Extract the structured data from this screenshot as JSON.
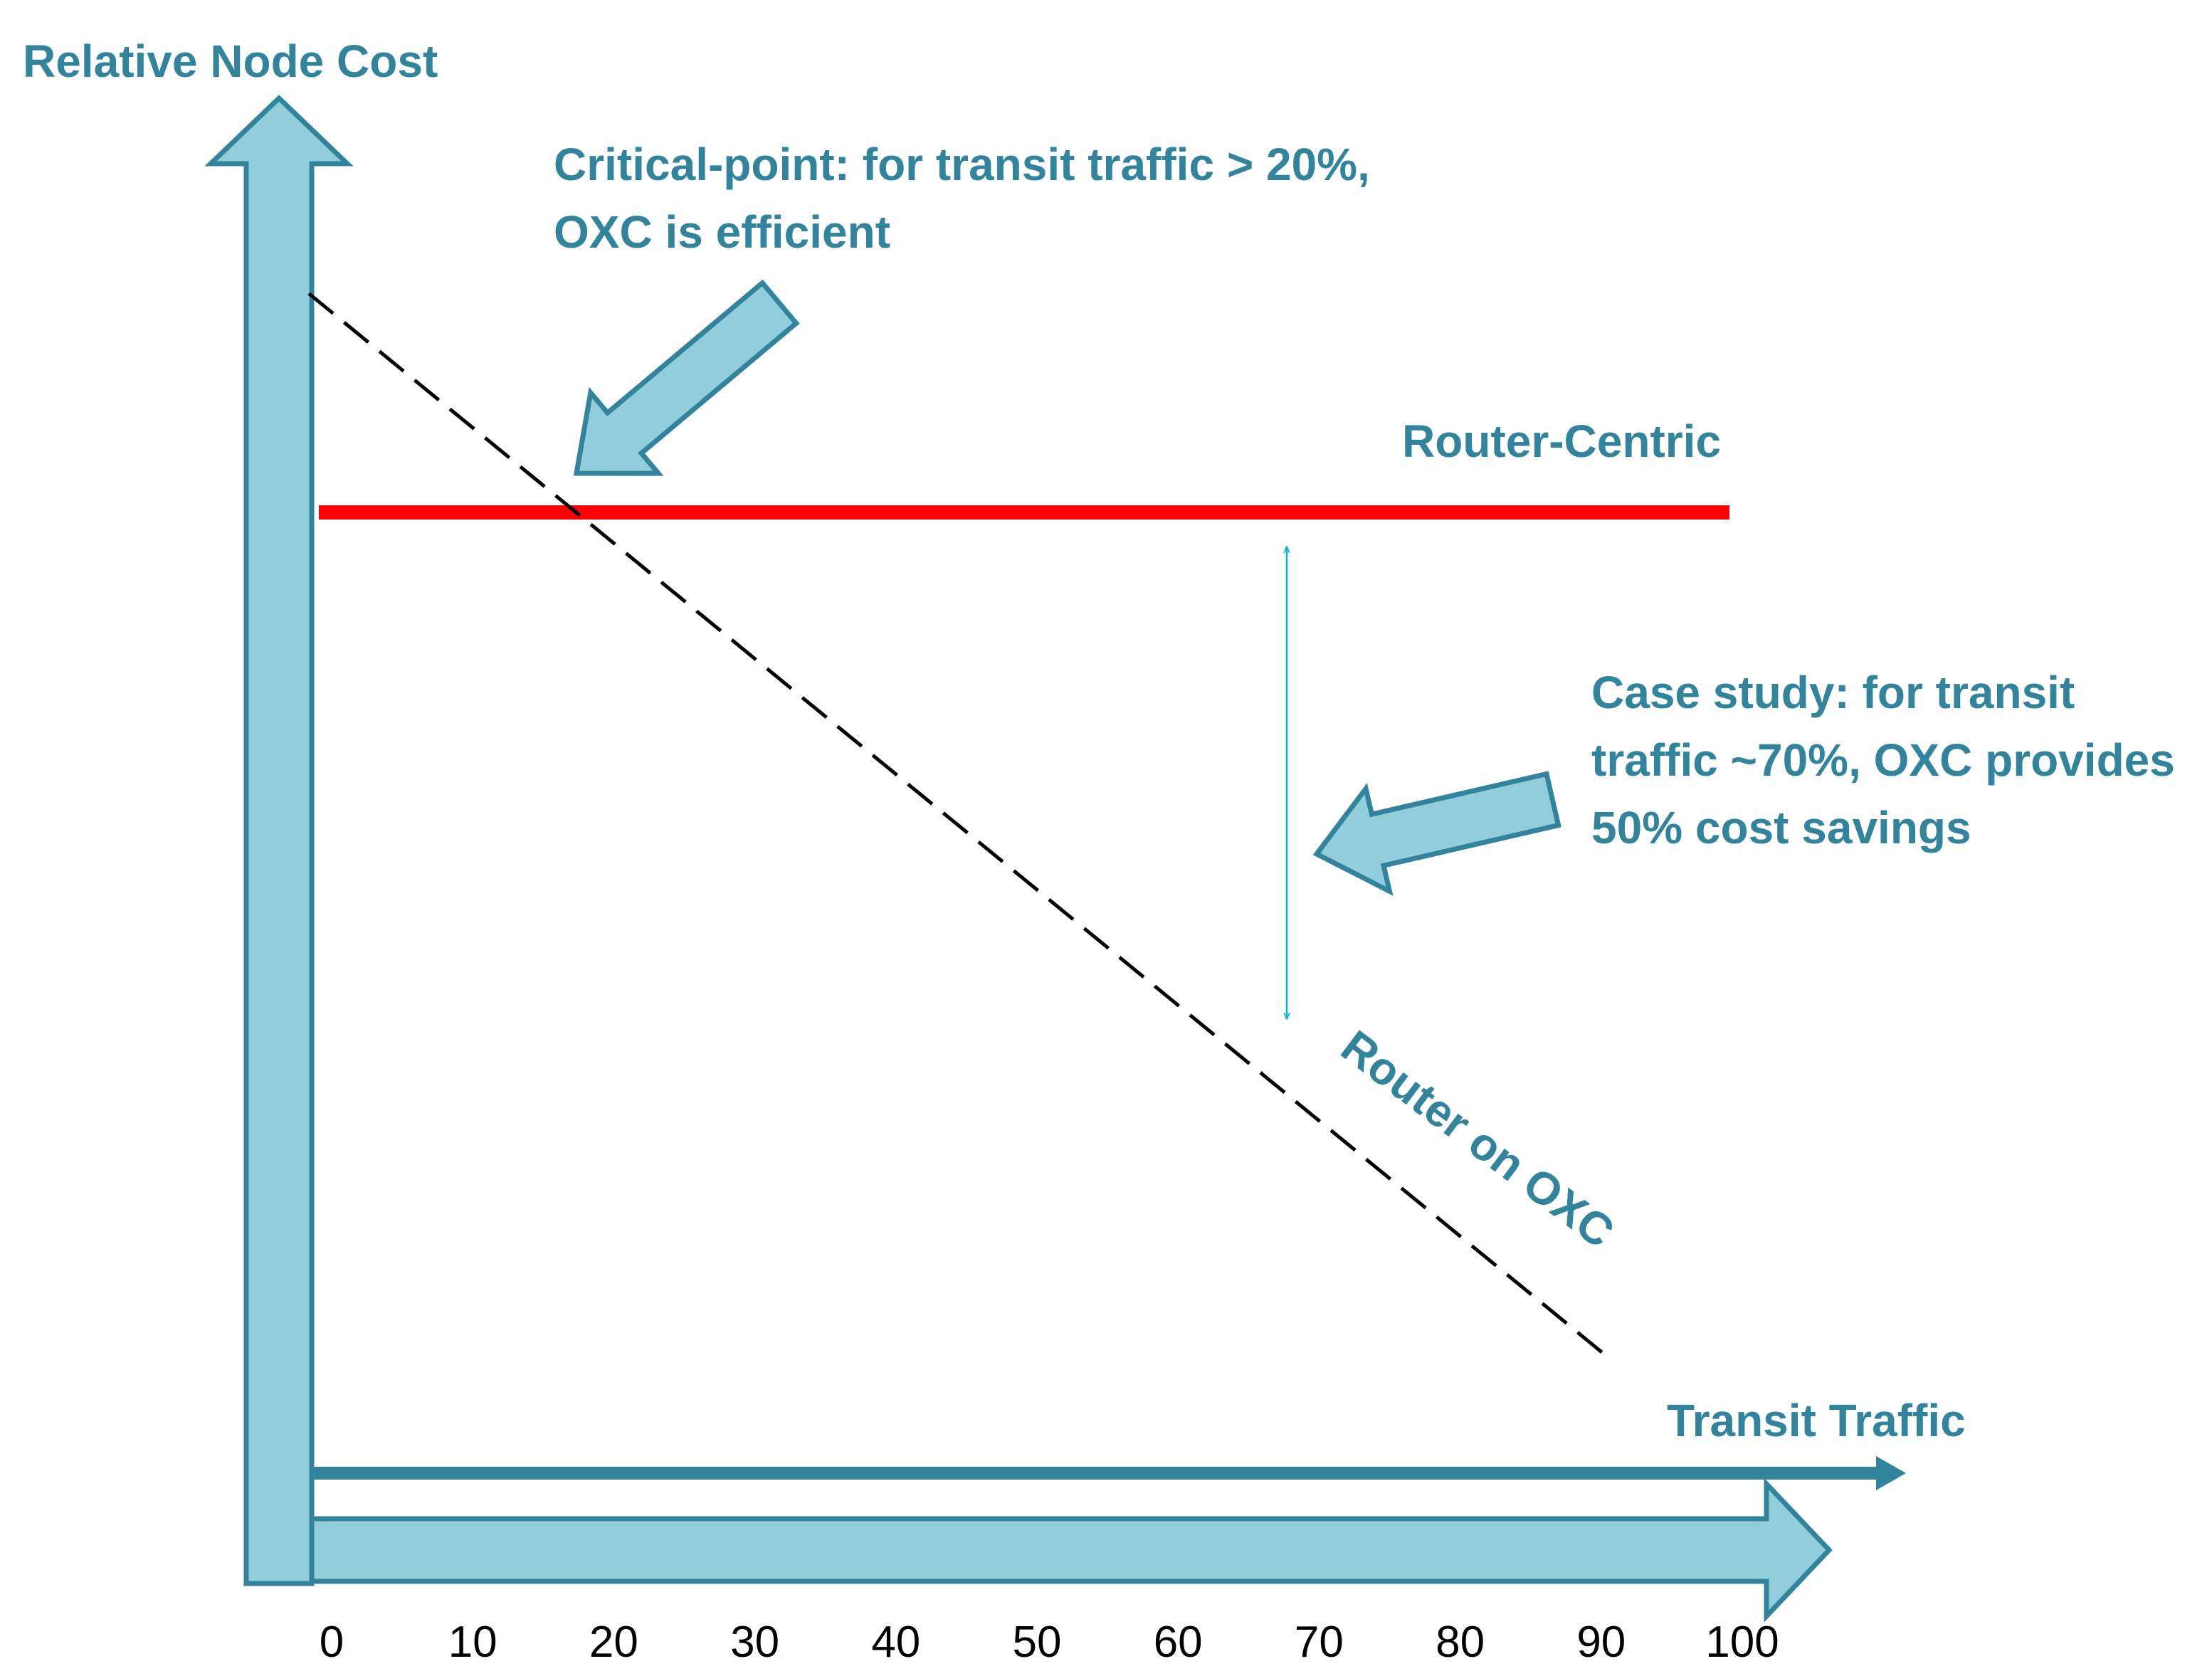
{
  "chart_data": {
    "type": "line",
    "ylabel": "Relative Node Cost",
    "xlabel": "Transit Traffic",
    "x_ticks": [
      "0",
      "10",
      "20",
      "30",
      "40",
      "50",
      "60",
      "70",
      "80",
      "90",
      "100"
    ],
    "xlim": [
      0,
      100
    ],
    "grid": false,
    "series": [
      {
        "name": "Router-Centric",
        "color": "#ff0000",
        "line_style": "solid",
        "points": [
          [
            0,
            1.0
          ],
          [
            100,
            1.0
          ]
        ]
      },
      {
        "name": "Router on OXC",
        "color": "#000000",
        "line_style": "dashed",
        "points": [
          [
            0,
            1.25
          ],
          [
            91,
            0.04
          ]
        ]
      }
    ],
    "annotations": [
      {
        "lines": [
          "Critical-point: for transit traffic > 20%,",
          "OXC is efficient"
        ],
        "points_to_x": 18
      },
      {
        "lines": [
          "Case study: for transit",
          "traffic ~70%, OXC provides",
          "50% cost savings"
        ],
        "points_to_x": 72
      }
    ]
  },
  "colors": {
    "arrow_fill": "#92cddc",
    "arrow_stroke": "#31849b",
    "label_color": "#31849b",
    "bracket_color": "#00b0f0"
  }
}
